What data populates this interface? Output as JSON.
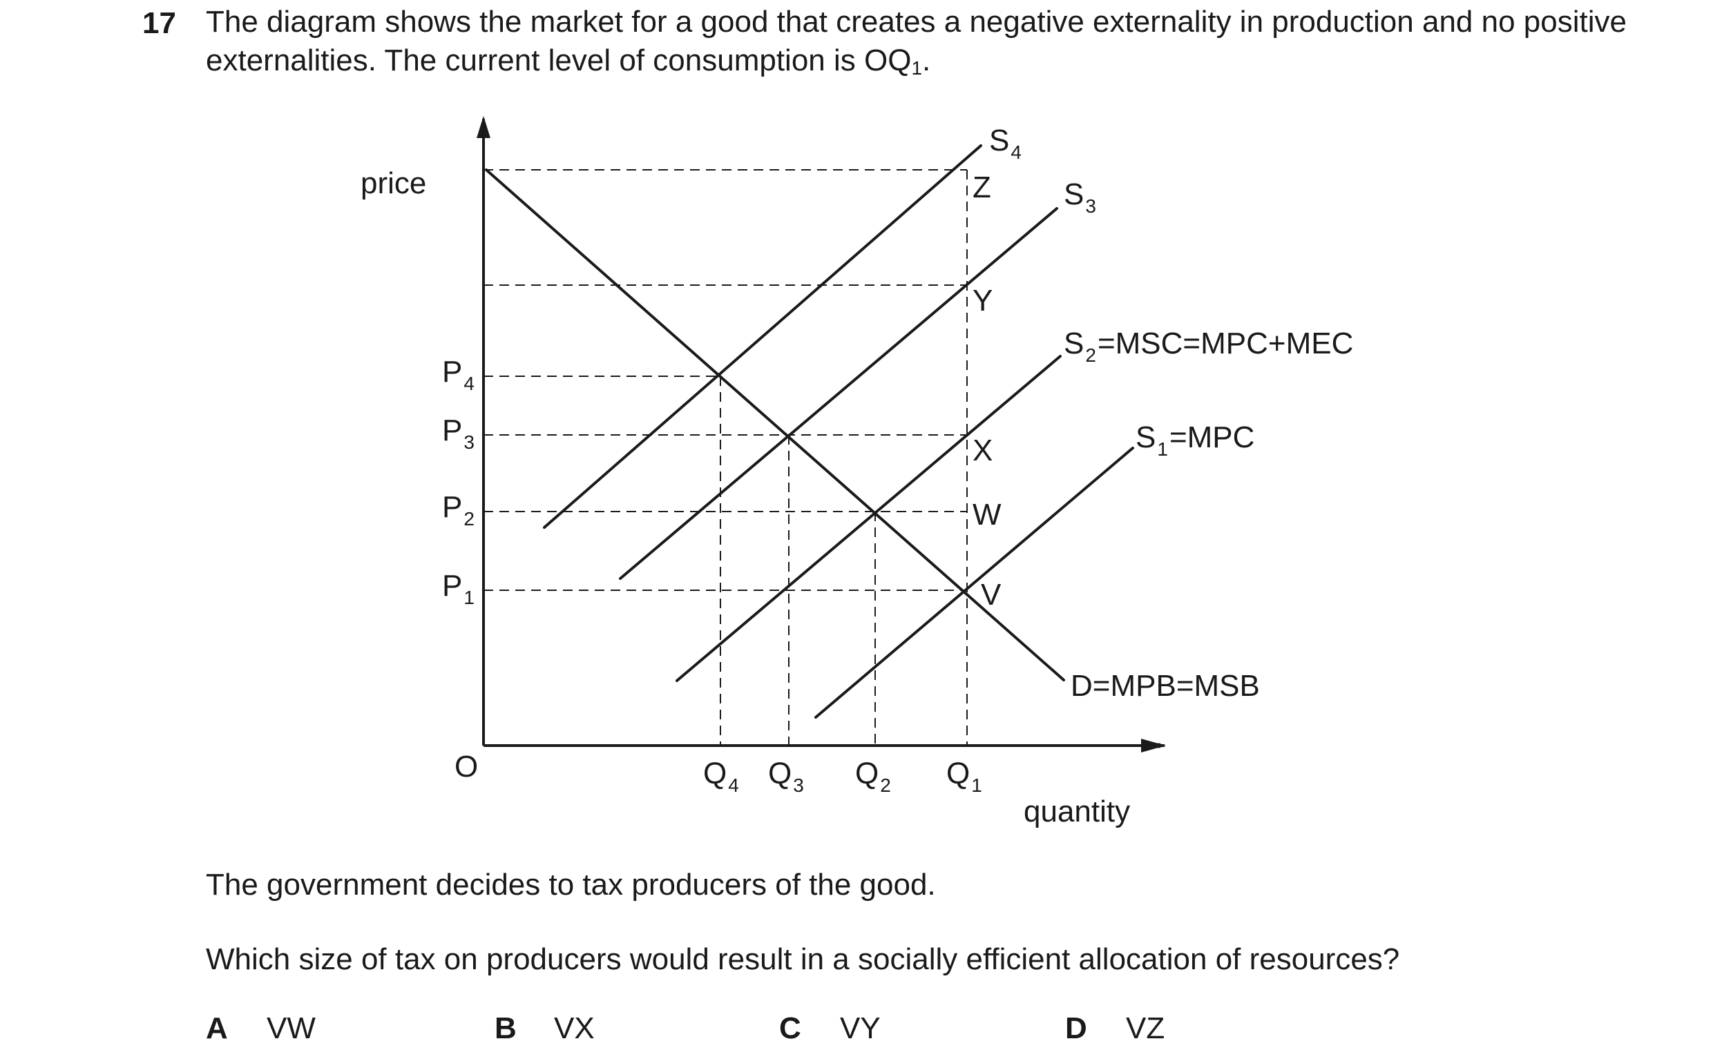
{
  "question": {
    "number": "17",
    "text_before_sub": "The diagram shows the market for a good that creates a negative externality in production and no positive externalities. The current level of consumption is OQ",
    "sub": "1",
    "text_after_sub": "."
  },
  "diagram": {
    "y_axis_label": "price",
    "x_axis_label": "quantity",
    "origin_label": "O",
    "price_labels": [
      {
        "main": "P",
        "sub": "4"
      },
      {
        "main": "P",
        "sub": "3"
      },
      {
        "main": "P",
        "sub": "2"
      },
      {
        "main": "P",
        "sub": "1"
      }
    ],
    "quantity_labels": [
      {
        "main": "Q",
        "sub": "4"
      },
      {
        "main": "Q",
        "sub": "3"
      },
      {
        "main": "Q",
        "sub": "2"
      },
      {
        "main": "Q",
        "sub": "1"
      }
    ],
    "curves": {
      "s4": {
        "main": "S",
        "sub": "4"
      },
      "s3": {
        "main": "S",
        "sub": "3"
      },
      "s2": {
        "main": "S",
        "sub": "2",
        "rest": "=MSC=MPC+MEC"
      },
      "s1": {
        "main": "S",
        "sub": "1",
        "rest": "=MPC"
      },
      "demand": "D=MPB=MSB"
    },
    "points": [
      "Z",
      "Y",
      "X",
      "W",
      "V"
    ]
  },
  "statement": "The government decides to tax producers of the good.",
  "prompt": "Which size of tax on producers would result in a socially efficient allocation of resources?",
  "options": [
    {
      "letter": "A",
      "text": "VW"
    },
    {
      "letter": "B",
      "text": "VX"
    },
    {
      "letter": "C",
      "text": "VY"
    },
    {
      "letter": "D",
      "text": "VZ"
    }
  ]
}
